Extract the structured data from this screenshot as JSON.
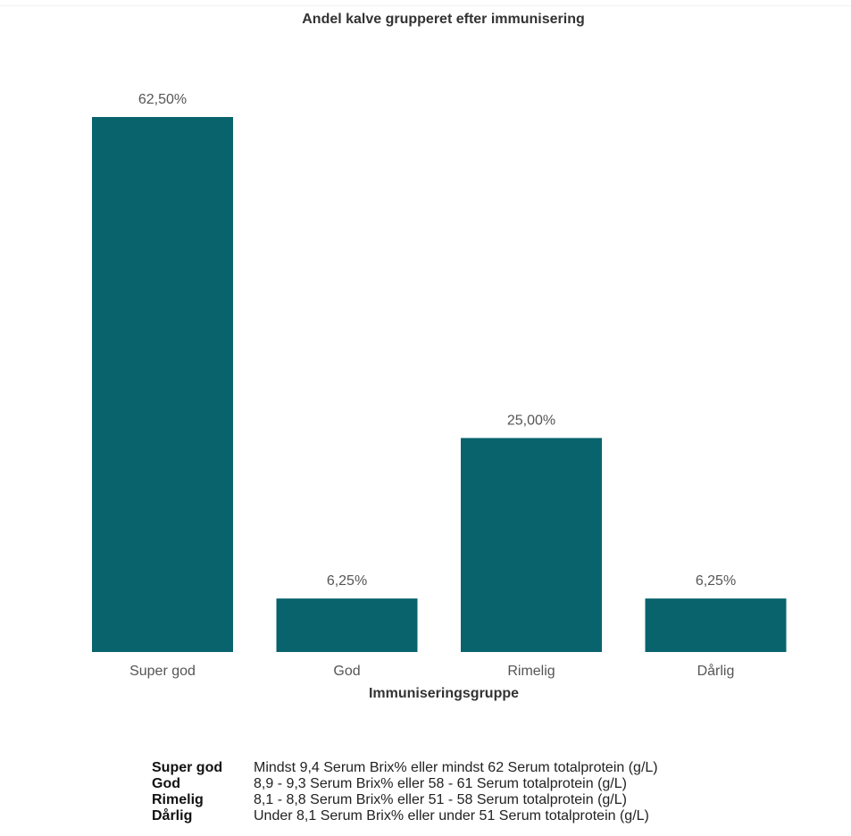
{
  "chart_data": {
    "type": "bar",
    "title": "Andel kalve grupperet efter immunisering",
    "xlabel": "Immuniseringsgruppe",
    "ylabel": "",
    "categories": [
      "Super god",
      "God",
      "Rimelig",
      "Dårlig"
    ],
    "values": [
      62.5,
      6.25,
      25.0,
      6.25
    ],
    "value_labels": [
      "62,50%",
      "6,25%",
      "25,00%",
      "6,25%"
    ],
    "ylim": [
      0,
      62.5
    ],
    "grid": false,
    "bar_color": "#08636d"
  },
  "legend_table": [
    {
      "key": "Super god",
      "desc": "Mindst 9,4 Serum Brix% eller mindst 62 Serum totalprotein (g/L)"
    },
    {
      "key": "God",
      "desc": "8,9 - 9,3 Serum Brix% eller 58 - 61 Serum totalprotein (g/L)"
    },
    {
      "key": "Rimelig",
      "desc": "8,1 - 8,8 Serum Brix% eller 51 - 58 Serum totalprotein (g/L)"
    },
    {
      "key": "Dårlig",
      "desc": "Under 8,1 Serum Brix% eller under 51 Serum totalprotein (g/L)"
    }
  ]
}
